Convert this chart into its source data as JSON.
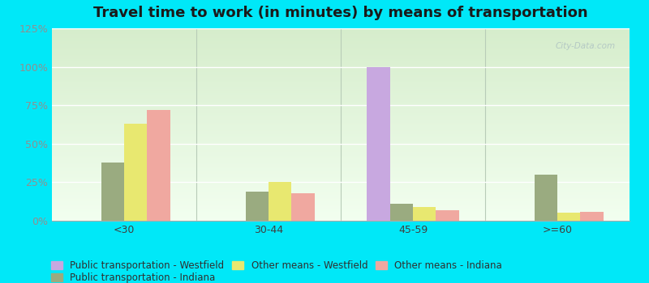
{
  "title": "Travel time to work (in minutes) by means of transportation",
  "categories": [
    "<30",
    "30-44",
    "45-59",
    ">=60"
  ],
  "series_order": [
    "Public transportation - Westfield",
    "Public transportation - Indiana",
    "Other means - Westfield",
    "Other means - Indiana"
  ],
  "series": {
    "Public transportation - Westfield": {
      "values": [
        0,
        0,
        100,
        0
      ],
      "color": "#c8a8e0"
    },
    "Public transportation - Indiana": {
      "values": [
        38,
        19,
        11,
        30
      ],
      "color": "#9aab80"
    },
    "Other means - Westfield": {
      "values": [
        63,
        25,
        9,
        5
      ],
      "color": "#e8e870"
    },
    "Other means - Indiana": {
      "values": [
        72,
        18,
        7,
        6
      ],
      "color": "#f0a8a0"
    }
  },
  "ylim": [
    0,
    125
  ],
  "yticks": [
    0,
    25,
    50,
    75,
    100,
    125
  ],
  "ytick_labels": [
    "0%",
    "25%",
    "50%",
    "75%",
    "100%",
    "125%"
  ],
  "outer_bg": "#00e8f8",
  "plot_bg_top": "#d8ecd0",
  "plot_bg_bottom": "#f0faf0",
  "grid_color": "#ffffff",
  "bar_width": 0.16,
  "title_fontsize": 13,
  "axis_fontsize": 9,
  "legend_fontsize": 8.5
}
